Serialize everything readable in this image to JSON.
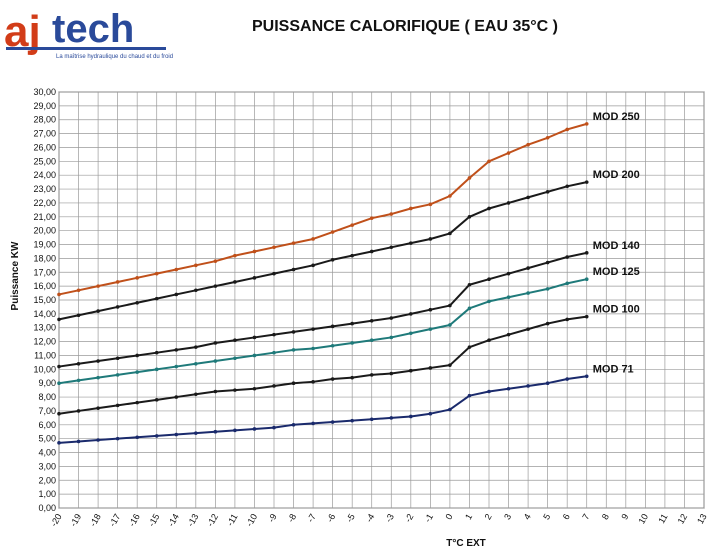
{
  "header": {
    "logo_text": "ajtech",
    "logo_tagline": "La maîtrise hydraulique du chaud et du froid"
  },
  "chart_data": {
    "type": "line",
    "title": "PUISSANCE CALORIFIQUE ( EAU 35°C )",
    "xlabel": "T°C EXT",
    "ylabel": "Puissance KW",
    "xlim": [
      -20,
      13
    ],
    "ylim": [
      0,
      30
    ],
    "x_ticks": [
      -20,
      -19,
      -18,
      -17,
      -16,
      -15,
      -14,
      -13,
      -12,
      -11,
      -10,
      -9,
      -8,
      -7,
      -6,
      -5,
      -4,
      -3,
      -2,
      -1,
      0,
      1,
      2,
      3,
      4,
      5,
      6,
      7,
      8,
      9,
      10,
      11,
      12,
      13
    ],
    "x_tick_labels": [
      "-20",
      "-19",
      "-18",
      "-17",
      "-16",
      "-15",
      "-14",
      "-13",
      "-12",
      "-11",
      "-10",
      "-9",
      "-8",
      "-7",
      "-6",
      "-5",
      "-4",
      "-3",
      "-2",
      "-1",
      "0",
      "1",
      "2",
      "3",
      "4",
      "5",
      "6",
      "7",
      "8",
      "9",
      "10",
      "11",
      "12",
      "13"
    ],
    "y_ticks": [
      0,
      1,
      2,
      3,
      4,
      5,
      6,
      7,
      8,
      9,
      10,
      11,
      12,
      13,
      14,
      15,
      16,
      17,
      18,
      19,
      20,
      21,
      22,
      23,
      24,
      25,
      26,
      27,
      28,
      29,
      30
    ],
    "y_tick_labels": [
      "0,00",
      "1,00",
      "2,00",
      "3,00",
      "4,00",
      "5,00",
      "6,00",
      "7,00",
      "8,00",
      "9,00",
      "10,00",
      "11,00",
      "12,00",
      "13,00",
      "14,00",
      "15,00",
      "16,00",
      "17,00",
      "18,00",
      "19,00",
      "20,00",
      "21,00",
      "22,00",
      "23,00",
      "24,00",
      "25,00",
      "26,00",
      "27,00",
      "28,00",
      "29,00",
      "30,00"
    ],
    "x": [
      -20,
      -19,
      -18,
      -17,
      -16,
      -15,
      -14,
      -13,
      -12,
      -11,
      -10,
      -9,
      -8,
      -7,
      -6,
      -5,
      -4,
      -3,
      -2,
      -1,
      0,
      1,
      2,
      3,
      4,
      5,
      6,
      7
    ],
    "series": [
      {
        "name": "MOD 250",
        "color": "#c0501a",
        "values": [
          15.4,
          15.7,
          16.0,
          16.3,
          16.6,
          16.9,
          17.2,
          17.5,
          17.8,
          18.2,
          18.5,
          18.8,
          19.1,
          19.4,
          19.9,
          20.4,
          20.9,
          21.2,
          21.6,
          21.9,
          22.5,
          23.8,
          25.0,
          25.6,
          26.2,
          26.7,
          27.3,
          27.7
        ]
      },
      {
        "name": "MOD 200",
        "color": "#1a1a1a",
        "values": [
          13.6,
          13.9,
          14.2,
          14.5,
          14.8,
          15.1,
          15.4,
          15.7,
          16.0,
          16.3,
          16.6,
          16.9,
          17.2,
          17.5,
          17.9,
          18.2,
          18.5,
          18.8,
          19.1,
          19.4,
          19.8,
          21.0,
          21.6,
          22.0,
          22.4,
          22.8,
          23.2,
          23.5
        ]
      },
      {
        "name": "MOD 140",
        "color": "#1a1a1a",
        "values": [
          10.2,
          10.4,
          10.6,
          10.8,
          11.0,
          11.2,
          11.4,
          11.6,
          11.9,
          12.1,
          12.3,
          12.5,
          12.7,
          12.9,
          13.1,
          13.3,
          13.5,
          13.7,
          14.0,
          14.3,
          14.6,
          16.1,
          16.5,
          16.9,
          17.3,
          17.7,
          18.1,
          18.4
        ]
      },
      {
        "name": "MOD 125",
        "color": "#1f7a7a",
        "values": [
          9.0,
          9.2,
          9.4,
          9.6,
          9.8,
          10.0,
          10.2,
          10.4,
          10.6,
          10.8,
          11.0,
          11.2,
          11.4,
          11.5,
          11.7,
          11.9,
          12.1,
          12.3,
          12.6,
          12.9,
          13.2,
          14.4,
          14.9,
          15.2,
          15.5,
          15.8,
          16.2,
          16.5
        ]
      },
      {
        "name": "MOD 100",
        "color": "#1a1a1a",
        "values": [
          6.8,
          7.0,
          7.2,
          7.4,
          7.6,
          7.8,
          8.0,
          8.2,
          8.4,
          8.5,
          8.6,
          8.8,
          9.0,
          9.1,
          9.3,
          9.4,
          9.6,
          9.7,
          9.9,
          10.1,
          10.3,
          11.6,
          12.1,
          12.5,
          12.9,
          13.3,
          13.6,
          13.8
        ]
      },
      {
        "name": "MOD 71",
        "color": "#1a2a6c",
        "values": [
          4.7,
          4.8,
          4.9,
          5.0,
          5.1,
          5.2,
          5.3,
          5.4,
          5.5,
          5.6,
          5.7,
          5.8,
          6.0,
          6.1,
          6.2,
          6.3,
          6.4,
          6.5,
          6.6,
          6.8,
          7.1,
          8.1,
          8.4,
          8.6,
          8.8,
          9.0,
          9.3,
          9.5
        ]
      }
    ],
    "grid": true
  }
}
